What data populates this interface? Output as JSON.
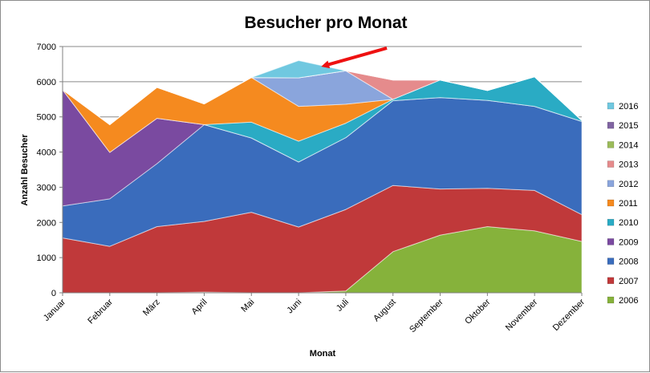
{
  "chart_data": {
    "type": "area",
    "title": "Besucher pro Monat",
    "xlabel": "Monat",
    "ylabel": "Anzahl Besucher",
    "ylim": [
      0,
      7000
    ],
    "yticks": [
      0,
      1000,
      2000,
      3000,
      4000,
      5000,
      6000,
      7000
    ],
    "grid": true,
    "legend_position": "right",
    "stacked": true,
    "categories": [
      "Januar",
      "Februar",
      "März",
      "April",
      "Mai",
      "Juni",
      "Juli",
      "August",
      "September",
      "Oktober",
      "November",
      "Dezember"
    ],
    "series": [
      {
        "name": "2006",
        "color": "#86b23b",
        "values": [
          0,
          0,
          0,
          20,
          0,
          0,
          50,
          1170,
          1640,
          1880,
          1760,
          1460
        ]
      },
      {
        "name": "2007",
        "color": "#c0393a",
        "values": [
          1560,
          1320,
          1880,
          2010,
          2290,
          1870,
          2320,
          1880,
          1310,
          1090,
          1150,
          760
        ]
      },
      {
        "name": "2008",
        "color": "#3a6cbc",
        "values": [
          910,
          1350,
          1790,
          2750,
          2110,
          1850,
          2040,
          2410,
          2600,
          2500,
          2390,
          2650
        ]
      },
      {
        "name": "2009",
        "color": "#7a4aa0",
        "values": [
          3300,
          1320,
          1290,
          0,
          0,
          0,
          0,
          0,
          0,
          0,
          0,
          0
        ]
      },
      {
        "name": "2010",
        "color": "#2aabc4",
        "values": [
          0,
          0,
          0,
          0,
          450,
          590,
          410,
          40,
          500,
          280,
          840,
          30
        ]
      },
      {
        "name": "2011",
        "color": "#f58a1f",
        "values": [
          0,
          790,
          880,
          590,
          1270,
          990,
          540,
          0,
          0,
          0,
          0,
          0
        ]
      },
      {
        "name": "2012",
        "color": "#8aa5dc",
        "values": [
          0,
          0,
          0,
          0,
          0,
          810,
          950,
          0,
          0,
          0,
          0,
          0
        ]
      },
      {
        "name": "2013",
        "color": "#e58b8c",
        "values": [
          0,
          0,
          0,
          0,
          0,
          0,
          0,
          550,
          0,
          0,
          0,
          0
        ]
      },
      {
        "name": "2014",
        "color": "#9bbb59",
        "values": [
          0,
          0,
          0,
          0,
          0,
          0,
          0,
          0,
          0,
          0,
          0,
          0
        ]
      },
      {
        "name": "2015",
        "color": "#8064a2",
        "values": [
          0,
          0,
          0,
          0,
          0,
          0,
          0,
          0,
          0,
          0,
          0,
          0
        ]
      },
      {
        "name": "2016",
        "color": "#70c8e0",
        "values": [
          0,
          0,
          0,
          0,
          0,
          490,
          0,
          0,
          0,
          0,
          0,
          0
        ]
      }
    ],
    "annotation_arrow": {
      "color": "#ee1111",
      "points_to_category": "Juni",
      "points_to_value": 6500
    }
  }
}
